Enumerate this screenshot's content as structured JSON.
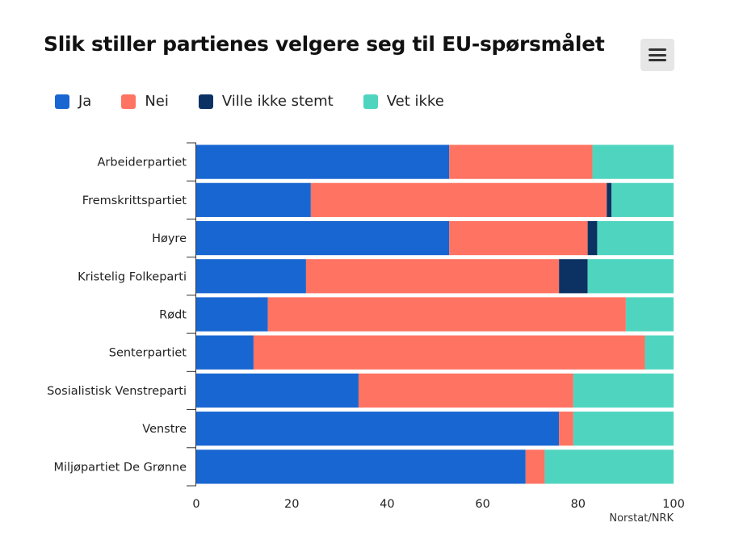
{
  "chart_data": {
    "type": "bar",
    "orientation": "horizontal",
    "stacked": true,
    "title": "Slik stiller partienes velgere seg til EU-spørsmålet",
    "xlabel": "",
    "ylabel": "",
    "xlim": [
      0,
      100
    ],
    "x_ticks": [
      0,
      20,
      40,
      60,
      80,
      100
    ],
    "grid": false,
    "legend_position": "top-left",
    "credit": "Norstat/NRK",
    "categories": [
      "Arbeiderpartiet",
      "Fremskrittspartiet",
      "Høyre",
      "Kristelig Folkeparti",
      "Rødt",
      "Senterpartiet",
      "Sosialistisk Venstreparti",
      "Venstre",
      "Miljøpartiet De Grønne"
    ],
    "series": [
      {
        "name": "Ja",
        "color": "#1866d1",
        "values": [
          53,
          24,
          53,
          23,
          15,
          12,
          34,
          76,
          69
        ]
      },
      {
        "name": "Nei",
        "color": "#ff7362",
        "values": [
          30,
          62,
          29,
          53,
          75,
          82,
          45,
          3,
          4
        ]
      },
      {
        "name": "Ville ikke stemt",
        "color": "#0c3264",
        "values": [
          0,
          1,
          2,
          6,
          0,
          0,
          0,
          0,
          0
        ]
      },
      {
        "name": "Vet ikke",
        "color": "#4fd5bf",
        "values": [
          17,
          13,
          16,
          18,
          10,
          6,
          21,
          21,
          27
        ]
      }
    ]
  },
  "menu": {
    "icon": "hamburger-menu-icon"
  }
}
